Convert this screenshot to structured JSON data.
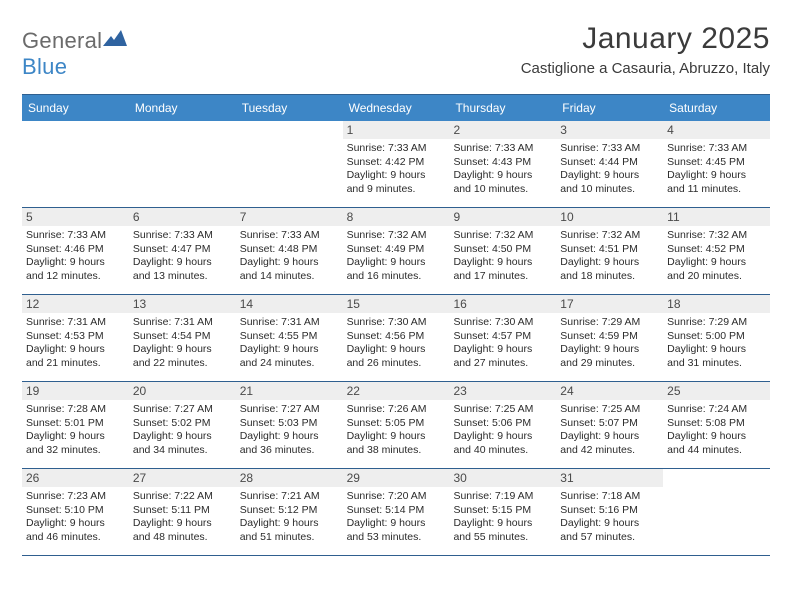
{
  "brand": {
    "name_a": "General",
    "name_b": "Blue"
  },
  "title": "January 2025",
  "subtitle": "Castiglione a Casauria, Abruzzo, Italy",
  "colors": {
    "header_bg": "#3d86c6",
    "rule": "#2f5f8f",
    "daynum_bg": "#eeeeee",
    "text": "#2b2b2b",
    "title": "#3b3b3b"
  },
  "day_names": [
    "Sunday",
    "Monday",
    "Tuesday",
    "Wednesday",
    "Thursday",
    "Friday",
    "Saturday"
  ],
  "weeks": [
    [
      null,
      null,
      null,
      {
        "n": "1",
        "sr": "7:33 AM",
        "ss": "4:42 PM",
        "d1": "9 hours",
        "d2": "9 minutes"
      },
      {
        "n": "2",
        "sr": "7:33 AM",
        "ss": "4:43 PM",
        "d1": "9 hours",
        "d2": "10 minutes"
      },
      {
        "n": "3",
        "sr": "7:33 AM",
        "ss": "4:44 PM",
        "d1": "9 hours",
        "d2": "10 minutes"
      },
      {
        "n": "4",
        "sr": "7:33 AM",
        "ss": "4:45 PM",
        "d1": "9 hours",
        "d2": "11 minutes"
      }
    ],
    [
      {
        "n": "5",
        "sr": "7:33 AM",
        "ss": "4:46 PM",
        "d1": "9 hours",
        "d2": "12 minutes"
      },
      {
        "n": "6",
        "sr": "7:33 AM",
        "ss": "4:47 PM",
        "d1": "9 hours",
        "d2": "13 minutes"
      },
      {
        "n": "7",
        "sr": "7:33 AM",
        "ss": "4:48 PM",
        "d1": "9 hours",
        "d2": "14 minutes"
      },
      {
        "n": "8",
        "sr": "7:32 AM",
        "ss": "4:49 PM",
        "d1": "9 hours",
        "d2": "16 minutes"
      },
      {
        "n": "9",
        "sr": "7:32 AM",
        "ss": "4:50 PM",
        "d1": "9 hours",
        "d2": "17 minutes"
      },
      {
        "n": "10",
        "sr": "7:32 AM",
        "ss": "4:51 PM",
        "d1": "9 hours",
        "d2": "18 minutes"
      },
      {
        "n": "11",
        "sr": "7:32 AM",
        "ss": "4:52 PM",
        "d1": "9 hours",
        "d2": "20 minutes"
      }
    ],
    [
      {
        "n": "12",
        "sr": "7:31 AM",
        "ss": "4:53 PM",
        "d1": "9 hours",
        "d2": "21 minutes"
      },
      {
        "n": "13",
        "sr": "7:31 AM",
        "ss": "4:54 PM",
        "d1": "9 hours",
        "d2": "22 minutes"
      },
      {
        "n": "14",
        "sr": "7:31 AM",
        "ss": "4:55 PM",
        "d1": "9 hours",
        "d2": "24 minutes"
      },
      {
        "n": "15",
        "sr": "7:30 AM",
        "ss": "4:56 PM",
        "d1": "9 hours",
        "d2": "26 minutes"
      },
      {
        "n": "16",
        "sr": "7:30 AM",
        "ss": "4:57 PM",
        "d1": "9 hours",
        "d2": "27 minutes"
      },
      {
        "n": "17",
        "sr": "7:29 AM",
        "ss": "4:59 PM",
        "d1": "9 hours",
        "d2": "29 minutes"
      },
      {
        "n": "18",
        "sr": "7:29 AM",
        "ss": "5:00 PM",
        "d1": "9 hours",
        "d2": "31 minutes"
      }
    ],
    [
      {
        "n": "19",
        "sr": "7:28 AM",
        "ss": "5:01 PM",
        "d1": "9 hours",
        "d2": "32 minutes"
      },
      {
        "n": "20",
        "sr": "7:27 AM",
        "ss": "5:02 PM",
        "d1": "9 hours",
        "d2": "34 minutes"
      },
      {
        "n": "21",
        "sr": "7:27 AM",
        "ss": "5:03 PM",
        "d1": "9 hours",
        "d2": "36 minutes"
      },
      {
        "n": "22",
        "sr": "7:26 AM",
        "ss": "5:05 PM",
        "d1": "9 hours",
        "d2": "38 minutes"
      },
      {
        "n": "23",
        "sr": "7:25 AM",
        "ss": "5:06 PM",
        "d1": "9 hours",
        "d2": "40 minutes"
      },
      {
        "n": "24",
        "sr": "7:25 AM",
        "ss": "5:07 PM",
        "d1": "9 hours",
        "d2": "42 minutes"
      },
      {
        "n": "25",
        "sr": "7:24 AM",
        "ss": "5:08 PM",
        "d1": "9 hours",
        "d2": "44 minutes"
      }
    ],
    [
      {
        "n": "26",
        "sr": "7:23 AM",
        "ss": "5:10 PM",
        "d1": "9 hours",
        "d2": "46 minutes"
      },
      {
        "n": "27",
        "sr": "7:22 AM",
        "ss": "5:11 PM",
        "d1": "9 hours",
        "d2": "48 minutes"
      },
      {
        "n": "28",
        "sr": "7:21 AM",
        "ss": "5:12 PM",
        "d1": "9 hours",
        "d2": "51 minutes"
      },
      {
        "n": "29",
        "sr": "7:20 AM",
        "ss": "5:14 PM",
        "d1": "9 hours",
        "d2": "53 minutes"
      },
      {
        "n": "30",
        "sr": "7:19 AM",
        "ss": "5:15 PM",
        "d1": "9 hours",
        "d2": "55 minutes"
      },
      {
        "n": "31",
        "sr": "7:18 AM",
        "ss": "5:16 PM",
        "d1": "9 hours",
        "d2": "57 minutes"
      },
      null
    ]
  ],
  "labels": {
    "sunrise": "Sunrise: ",
    "sunset": "Sunset: ",
    "daylight": "Daylight: ",
    "and": "and ",
    "period": "."
  }
}
